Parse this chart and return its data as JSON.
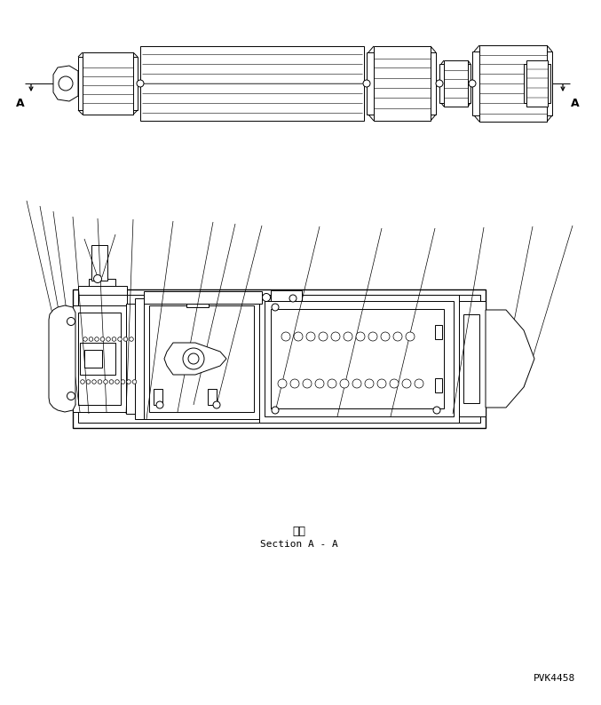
{
  "section_label_jp": "断面",
  "section_label_en": "Section A - A",
  "part_number": "PVK4458",
  "bg_color": "#ffffff",
  "lw": 0.7,
  "fig_width": 6.77,
  "fig_height": 7.94,
  "dpi": 100
}
